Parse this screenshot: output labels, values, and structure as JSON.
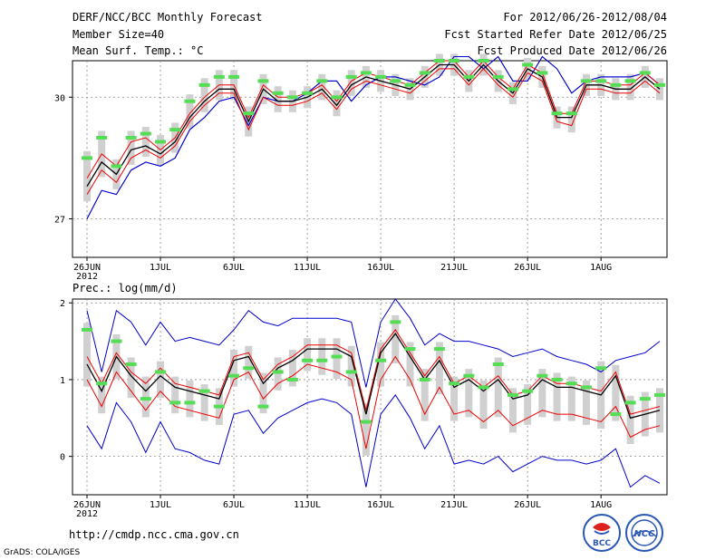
{
  "header": {
    "title": "DERF/NCC/BCC Monthly Forecast",
    "member_size": "Member Size=40",
    "top_var": "Mean Surf. Temp.: °C",
    "period": "For 2012/06/26-2012/08/04",
    "started": "Fcst Started Refer Date 2012/06/25",
    "produced": "Fcst Produced Date 2012/06/26"
  },
  "footer": {
    "url": "http://cmdp.ncc.cma.gov.cn",
    "credit": "GrADS: COLA/IGES",
    "logo1": "BCC",
    "logo2": "NCC"
  },
  "colors": {
    "envelope": "#0000cc",
    "spread": "#ee0000",
    "mean": "#000000",
    "obs": "#55dd55",
    "box": "#d0d0d0"
  },
  "chart_data": [
    {
      "type": "line",
      "title": "Mean Surf. Temp.: °C",
      "x": [
        1,
        2,
        3,
        4,
        5,
        6,
        7,
        8,
        9,
        10,
        11,
        12,
        13,
        14,
        15,
        16,
        17,
        18,
        19,
        20,
        21,
        22,
        23,
        24,
        25,
        26,
        27,
        28,
        29,
        30,
        31,
        32,
        33,
        34,
        35,
        36,
        37,
        38,
        39,
        40
      ],
      "x_ticks": [
        1,
        6,
        11,
        16,
        21,
        26,
        31,
        36
      ],
      "x_tick_labels": [
        "26JUN",
        "1JUL",
        "6JUL",
        "11JUL",
        "16JUL",
        "21JUL",
        "26JUL",
        "1AUG"
      ],
      "x_year": "2012",
      "ylim": [
        26.05,
        30.9
      ],
      "y_ticks": [
        27,
        30
      ],
      "series": [
        {
          "name": "max",
          "values": [
            27.0,
            27.7,
            27.6,
            28.2,
            28.4,
            28.3,
            28.5,
            29.2,
            29.5,
            29.9,
            30.0,
            29.3,
            30.0,
            29.9,
            29.9,
            30.1,
            30.4,
            30.4,
            29.9,
            30.3,
            30.5,
            30.5,
            30.4,
            30.3,
            30.5,
            31.0,
            31.0,
            30.7,
            31.0,
            30.4,
            30.4,
            31.0,
            30.7,
            30.1,
            30.4,
            30.5,
            30.5,
            30.5,
            30.6,
            30.3
          ]
        },
        {
          "name": "upper",
          "values": [
            28.0,
            28.6,
            28.3,
            28.9,
            29.0,
            28.7,
            29.0,
            29.6,
            30.0,
            30.3,
            30.3,
            29.5,
            30.3,
            30.0,
            30.0,
            30.1,
            30.3,
            29.9,
            30.4,
            30.6,
            30.5,
            30.4,
            30.3,
            30.6,
            30.9,
            30.9,
            30.5,
            30.9,
            30.5,
            30.2,
            30.8,
            30.6,
            29.6,
            29.6,
            30.4,
            30.4,
            30.3,
            30.3,
            30.6,
            30.3
          ]
        },
        {
          "name": "mean",
          "values": [
            27.8,
            28.4,
            28.1,
            28.7,
            28.8,
            28.6,
            28.9,
            29.5,
            29.9,
            30.2,
            30.2,
            29.4,
            30.2,
            29.9,
            29.9,
            30.0,
            30.2,
            29.8,
            30.3,
            30.5,
            30.4,
            30.3,
            30.2,
            30.5,
            30.8,
            30.8,
            30.4,
            30.8,
            30.4,
            30.1,
            30.7,
            30.5,
            29.5,
            29.5,
            30.3,
            30.3,
            30.2,
            30.2,
            30.5,
            30.2
          ]
        },
        {
          "name": "lower",
          "values": [
            27.6,
            28.2,
            27.9,
            28.5,
            28.7,
            28.5,
            28.8,
            29.4,
            29.8,
            30.1,
            30.1,
            29.2,
            30.0,
            29.8,
            29.8,
            29.9,
            30.1,
            29.7,
            30.2,
            30.4,
            30.3,
            30.2,
            30.1,
            30.4,
            30.7,
            30.7,
            30.3,
            30.7,
            30.3,
            30.0,
            30.6,
            30.4,
            29.4,
            29.3,
            30.2,
            30.2,
            30.1,
            30.1,
            30.4,
            30.1
          ]
        },
        {
          "name": "min",
          "values": [
            27.0,
            27.7,
            27.6,
            28.2,
            28.4,
            28.3,
            28.5,
            29.2,
            29.5,
            29.9,
            30.0,
            29.3,
            30.0,
            29.9,
            29.9,
            30.1,
            30.4,
            30.4,
            29.9,
            30.3,
            30.5,
            30.5,
            30.4,
            30.3,
            30.5,
            31.0,
            31.0,
            30.7,
            31.0,
            30.4,
            30.4,
            31.0,
            30.7,
            30.1,
            30.4,
            30.5,
            30.5,
            30.5,
            30.6,
            30.3
          ]
        },
        {
          "name": "observed",
          "values": [
            28.5,
            29.0,
            28.3,
            29.0,
            29.1,
            28.9,
            29.2,
            29.9,
            30.3,
            30.5,
            30.5,
            29.6,
            30.4,
            30.1,
            30.0,
            30.1,
            30.4,
            30.0,
            30.5,
            30.6,
            30.5,
            30.4,
            30.3,
            30.6,
            30.9,
            30.9,
            30.5,
            30.9,
            30.5,
            30.2,
            30.8,
            30.6,
            29.6,
            29.6,
            30.4,
            30.4,
            30.3,
            30.4,
            30.6,
            30.3
          ]
        }
      ]
    },
    {
      "type": "line",
      "title": "Prec.: log(mm/d)",
      "x": [
        1,
        2,
        3,
        4,
        5,
        6,
        7,
        8,
        9,
        10,
        11,
        12,
        13,
        14,
        15,
        16,
        17,
        18,
        19,
        20,
        21,
        22,
        23,
        24,
        25,
        26,
        27,
        28,
        29,
        30,
        31,
        32,
        33,
        34,
        35,
        36,
        37,
        38,
        39,
        40
      ],
      "x_ticks": [
        1,
        6,
        11,
        16,
        21,
        26,
        31,
        36
      ],
      "x_tick_labels": [
        "26JUN",
        "1JUL",
        "6JUL",
        "11JUL",
        "16JUL",
        "21JUL",
        "26JUL",
        "1AUG"
      ],
      "x_year": "2012",
      "ylim": [
        -0.5,
        2.05
      ],
      "y_ticks": [
        0,
        1,
        2
      ],
      "series": [
        {
          "name": "max",
          "values": [
            1.9,
            1.1,
            1.9,
            1.75,
            1.45,
            1.75,
            1.5,
            1.55,
            1.5,
            1.45,
            1.65,
            1.9,
            1.75,
            1.7,
            1.8,
            1.8,
            1.8,
            1.8,
            1.75,
            0.9,
            1.75,
            2.05,
            1.8,
            1.45,
            1.6,
            1.5,
            1.5,
            1.45,
            1.4,
            1.3,
            1.35,
            1.4,
            1.3,
            1.25,
            1.2,
            1.1,
            1.25,
            1.3,
            1.35,
            1.5
          ]
        },
        {
          "name": "upper",
          "values": [
            1.3,
            0.95,
            1.35,
            1.1,
            0.95,
            1.15,
            0.95,
            0.9,
            0.85,
            0.8,
            1.3,
            1.35,
            1.0,
            1.2,
            1.3,
            1.45,
            1.45,
            1.45,
            1.35,
            0.6,
            1.4,
            1.65,
            1.35,
            1.05,
            1.3,
            0.95,
            1.05,
            0.9,
            1.05,
            0.8,
            0.85,
            1.05,
            0.95,
            0.95,
            0.9,
            0.85,
            1.1,
            0.55,
            0.6,
            0.65
          ]
        },
        {
          "name": "mean",
          "values": [
            1.2,
            0.85,
            1.3,
            1.05,
            0.85,
            1.05,
            0.9,
            0.85,
            0.8,
            0.75,
            1.25,
            1.3,
            0.95,
            1.15,
            1.25,
            1.4,
            1.4,
            1.4,
            1.3,
            0.55,
            1.35,
            1.6,
            1.3,
            1.0,
            1.25,
            0.9,
            1.0,
            0.85,
            1.0,
            0.75,
            0.8,
            1.0,
            0.9,
            0.9,
            0.85,
            0.8,
            1.05,
            0.5,
            0.55,
            0.6
          ]
        },
        {
          "name": "lower",
          "values": [
            1.0,
            0.65,
            1.1,
            0.85,
            0.6,
            0.85,
            0.65,
            0.6,
            0.55,
            0.5,
            1.0,
            1.1,
            0.75,
            0.95,
            1.05,
            1.2,
            1.15,
            1.1,
            1.0,
            0.1,
            1.0,
            1.3,
            1.0,
            0.55,
            0.9,
            0.55,
            0.6,
            0.45,
            0.6,
            0.4,
            0.5,
            0.6,
            0.55,
            0.55,
            0.5,
            0.45,
            0.65,
            0.25,
            0.35,
            0.4
          ]
        },
        {
          "name": "min",
          "values": [
            0.4,
            0.1,
            0.7,
            0.45,
            0.05,
            0.45,
            0.1,
            0.05,
            -0.05,
            -0.1,
            0.55,
            0.6,
            0.3,
            0.5,
            0.6,
            0.7,
            0.75,
            0.7,
            0.55,
            -0.4,
            0.55,
            0.8,
            0.5,
            0.1,
            0.4,
            -0.1,
            -0.05,
            -0.1,
            0.0,
            -0.2,
            -0.1,
            0.0,
            -0.05,
            -0.05,
            -0.1,
            -0.05,
            0.1,
            -0.4,
            -0.25,
            -0.35
          ]
        },
        {
          "name": "observed",
          "values": [
            1.65,
            0.95,
            1.5,
            1.2,
            0.75,
            1.1,
            0.7,
            0.7,
            0.85,
            0.65,
            1.05,
            1.15,
            0.65,
            1.1,
            1.0,
            1.25,
            1.25,
            1.3,
            1.1,
            0.45,
            1.25,
            1.75,
            1.4,
            1.0,
            1.4,
            0.95,
            1.05,
            0.9,
            1.2,
            0.8,
            0.85,
            1.05,
            1.0,
            0.95,
            0.9,
            1.15,
            0.55,
            0.7,
            0.75,
            0.8
          ]
        }
      ]
    }
  ]
}
